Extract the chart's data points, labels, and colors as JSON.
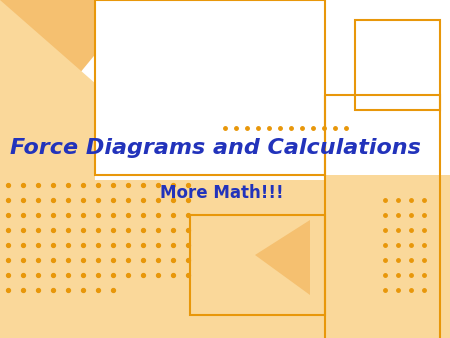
{
  "bg_color": "#ffffff",
  "title_text": "Force Diagrams and Calculations",
  "subtitle_text": "More Math!!!",
  "title_color": "#2233bb",
  "subtitle_color": "#2233bb",
  "orange_fill_light": "#fad89a",
  "orange_fill": "#f5c070",
  "orange_line": "#e8970a",
  "dot_color": "#e8970a",
  "title_fontsize": 16,
  "subtitle_fontsize": 12
}
